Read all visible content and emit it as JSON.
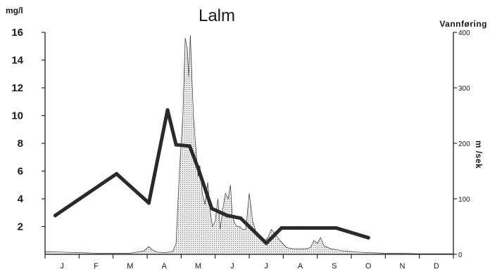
{
  "chart_data": {
    "type": "line",
    "title": "Lalm",
    "y_left_label": "mg/l",
    "y_right_label": "Vannføring",
    "y_right_unit": "m  /sek",
    "ylim_left": [
      0,
      16
    ],
    "ylim_right": [
      0,
      400
    ],
    "y_left_ticks": [
      "2",
      "4",
      "6",
      "8",
      "10",
      "12",
      "14",
      "16"
    ],
    "y_right_ticks": [
      "0",
      "100",
      "200",
      "300",
      "400"
    ],
    "x_ticks": [
      "J",
      "F",
      "M",
      "A",
      "M",
      "J",
      "J",
      "A",
      "S",
      "O",
      "N",
      "D"
    ],
    "x_range": [
      0,
      12
    ],
    "series": [
      {
        "kind": "concentration",
        "axis": "left",
        "x": [
          0.3,
          2.1,
          3.05,
          3.6,
          3.85,
          4.25,
          4.5,
          4.9,
          5.35,
          5.75,
          6.5,
          6.95,
          7.6,
          8.55,
          9.5
        ],
        "values": [
          2.8,
          5.8,
          3.7,
          10.4,
          7.9,
          7.8,
          6.2,
          3.3,
          2.8,
          2.6,
          0.8,
          1.9,
          1.9,
          1.9,
          1.2
        ]
      },
      {
        "kind": "discharge",
        "axis": "right",
        "x": [
          0,
          0.5,
          1.0,
          1.5,
          2.0,
          2.5,
          2.9,
          3.05,
          3.15,
          3.3,
          3.5,
          3.75,
          3.85,
          3.95,
          4.05,
          4.12,
          4.18,
          4.22,
          4.27,
          4.31,
          4.36,
          4.42,
          4.5,
          4.55,
          4.62,
          4.7,
          4.78,
          4.85,
          4.92,
          5.0,
          5.08,
          5.15,
          5.22,
          5.3,
          5.38,
          5.45,
          5.5,
          5.58,
          5.65,
          5.72,
          5.8,
          5.9,
          6.0,
          6.1,
          6.2,
          6.3,
          6.45,
          6.55,
          6.65,
          6.78,
          6.9,
          7.1,
          7.3,
          7.5,
          7.65,
          7.8,
          7.9,
          8.0,
          8.1,
          8.2,
          8.4,
          8.6,
          8.8,
          9.0,
          9.2,
          9.5,
          10.0,
          10.5,
          11.0,
          11.5,
          12.0
        ],
        "values": [
          5,
          4,
          3,
          2,
          2,
          2,
          6,
          14,
          8,
          4,
          3,
          5,
          20,
          150,
          250,
          390,
          370,
          320,
          395,
          330,
          250,
          200,
          140,
          160,
          110,
          90,
          130,
          80,
          50,
          60,
          100,
          45,
          80,
          110,
          100,
          125,
          70,
          55,
          50,
          50,
          45,
          45,
          110,
          60,
          40,
          30,
          25,
          30,
          45,
          35,
          25,
          12,
          10,
          10,
          10,
          12,
          25,
          20,
          30,
          15,
          10,
          8,
          6,
          5,
          4,
          3,
          2,
          2,
          1,
          1,
          1
        ]
      }
    ]
  }
}
